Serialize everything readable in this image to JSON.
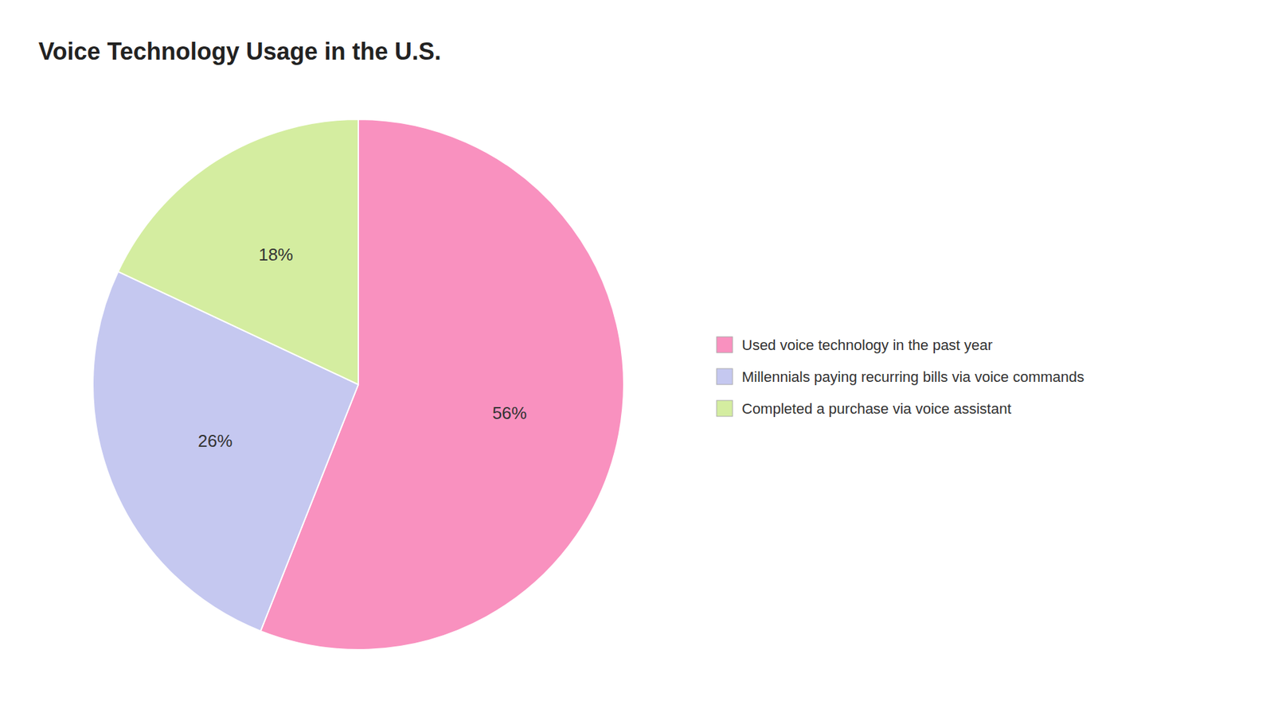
{
  "chart_data": {
    "type": "pie",
    "title": "Voice Technology Usage in the U.S.",
    "categories": [
      "Used voice technology in the past year",
      "Millennials paying recurring bills via voice commands",
      "Completed a purchase via voice assistant"
    ],
    "values": [
      56,
      26,
      18
    ],
    "value_labels": [
      "56%",
      "26%",
      "18%"
    ],
    "colors": [
      "#F991BF",
      "#C5C8F0",
      "#D4EDA0"
    ],
    "data_labels": true,
    "legend": "right"
  }
}
